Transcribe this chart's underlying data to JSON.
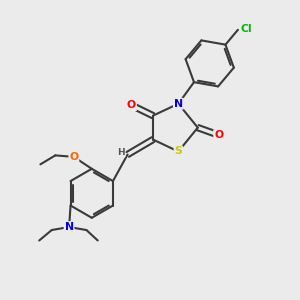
{
  "bg_color": "#ebebeb",
  "bond_color": "#3a3a3a",
  "atom_colors": {
    "N": "#0000ee",
    "O": "#ff0000",
    "O2": "#ff0000",
    "S": "#cccc00",
    "Cl": "#00bb00",
    "H": "#555555",
    "C": "#3a3a3a"
  },
  "figsize": [
    3.0,
    3.0
  ],
  "dpi": 100
}
